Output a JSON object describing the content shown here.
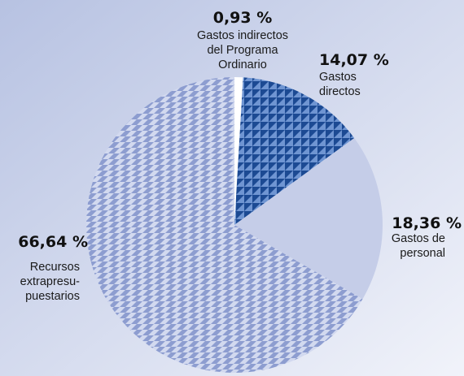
{
  "chart_data": {
    "type": "pie",
    "title": "",
    "start_angle_deg": 0,
    "direction": "clockwise",
    "slices": [
      {
        "name": "Gastos indirectos del Programa Ordinario",
        "value": 0.93,
        "pct_label": "0,93 %",
        "label_lines": [
          "Gastos indirectos",
          "del Programa",
          "Ordinario"
        ],
        "fill": "#ffffff",
        "pattern": "none"
      },
      {
        "name": "Gastos directos",
        "value": 14.07,
        "pct_label": "14,07 %",
        "label_lines": [
          "Gastos",
          "directos"
        ],
        "fill": "#2f5fa8",
        "pattern": "triangles-dark"
      },
      {
        "name": "Gastos de personal",
        "value": 18.36,
        "pct_label": "18,36 %",
        "label_lines": [
          "Gastos de",
          "personal"
        ],
        "fill": "#c5cde8",
        "pattern": "none"
      },
      {
        "name": "Recursos extrapresupuestarios",
        "value": 66.64,
        "pct_label": "66,64 %",
        "label_lines": [
          "Recursos",
          "extrapresu-",
          "puestarios"
        ],
        "fill": "#a9b6de",
        "pattern": "triangles-light"
      }
    ],
    "colors": {
      "background_top_left": "#b7c2e2",
      "background_bottom_right": "#f1f3fa",
      "pattern_dark_fg": "#1c4a93",
      "pattern_dark_bg": "#6f95d2",
      "pattern_light_fg": "#8d9dd0",
      "pattern_light_bg": "#d2d9ef"
    }
  }
}
